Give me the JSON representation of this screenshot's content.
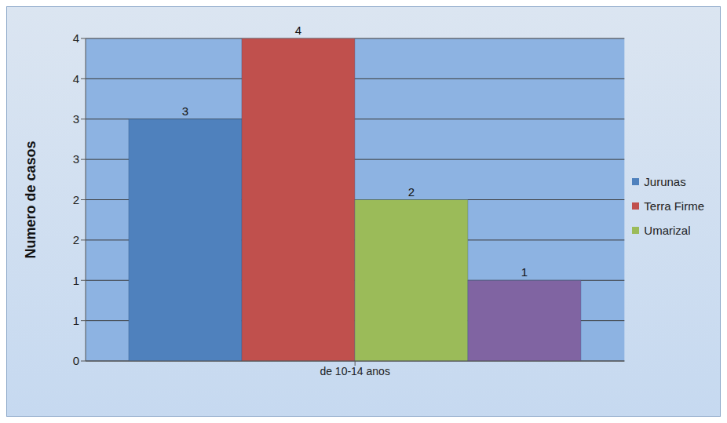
{
  "chart_data": {
    "type": "bar",
    "categories": [
      "de 10-14 anos"
    ],
    "y_label": "Numero de casos",
    "series": [
      {
        "name": "Jurunas",
        "color": "#4f81bd",
        "values": [
          3
        ]
      },
      {
        "name": "Terra Firme",
        "color": "#c0504d",
        "values": [
          4
        ]
      },
      {
        "name": "Umarizal",
        "color": "#9bbb59",
        "values": [
          2
        ]
      },
      {
        "color": "#8064a2",
        "values": [
          1
        ]
      }
    ],
    "ylim": [
      0,
      4
    ],
    "yticks": [
      0,
      {
        "value": 0.5,
        "label": "1"
      },
      1,
      {
        "value": 1.5,
        "label": "2"
      },
      2,
      {
        "value": 2.5,
        "label": "3"
      },
      3,
      {
        "value": 3.5,
        "label": "4"
      },
      4
    ],
    "grid": true,
    "legend": "right",
    "data_labels": true
  }
}
